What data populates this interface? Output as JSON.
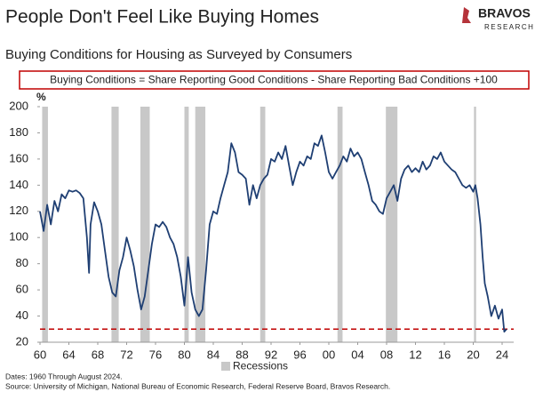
{
  "chart_data": {
    "type": "line",
    "title": "People Don't Feel Like Buying Homes",
    "subtitle": "Buying Conditions for Housing as Surveyed by Consumers",
    "annotation": "Buying Conditions = Share Reporting Good Conditions - Share Reporting Bad Conditions +100",
    "y_label": "%",
    "x": [
      1960,
      1960.5,
      1961,
      1961.5,
      1962,
      1962.5,
      1963,
      1963.5,
      1964,
      1964.5,
      1965,
      1965.5,
      1966,
      1966.5,
      1966.8,
      1967,
      1967.5,
      1968,
      1968.5,
      1969,
      1969.5,
      1970,
      1970.5,
      1971,
      1971.5,
      1972,
      1972.5,
      1973,
      1973.5,
      1974,
      1974.5,
      1975,
      1975.5,
      1976,
      1976.5,
      1977,
      1977.5,
      1978,
      1978.5,
      1979,
      1979.5,
      1980,
      1980.5,
      1981,
      1981.5,
      1982,
      1982.5,
      1983,
      1983.5,
      1984,
      1984.5,
      1985,
      1985.5,
      1986,
      1986.5,
      1987,
      1987.5,
      1988,
      1988.5,
      1989,
      1989.5,
      1990,
      1990.5,
      1991,
      1991.5,
      1992,
      1992.5,
      1993,
      1993.5,
      1994,
      1994.5,
      1995,
      1995.5,
      1996,
      1996.5,
      1997,
      1997.5,
      1998,
      1998.5,
      1999,
      1999.5,
      2000,
      2000.5,
      2001,
      2001.5,
      2002,
      2002.5,
      2003,
      2003.5,
      2004,
      2004.5,
      2005,
      2005.5,
      2006,
      2006.5,
      2007,
      2007.5,
      2008,
      2008.5,
      2009,
      2009.5,
      2010,
      2010.5,
      2011,
      2011.5,
      2012,
      2012.5,
      2013,
      2013.5,
      2014,
      2014.5,
      2015,
      2015.5,
      2016,
      2016.5,
      2017,
      2017.5,
      2018,
      2018.5,
      2019,
      2019.5,
      2020,
      2020.3,
      2020.6,
      2021,
      2021.3,
      2021.6,
      2022,
      2022.5,
      2023,
      2023.5,
      2024,
      2024.3,
      2024.6
    ],
    "series": [
      {
        "color": "#1f3f73",
        "values": [
          120,
          105,
          125,
          110,
          128,
          120,
          133,
          130,
          136,
          135,
          136,
          134,
          130,
          100,
          73,
          110,
          127,
          120,
          110,
          90,
          70,
          58,
          55,
          75,
          85,
          100,
          90,
          78,
          60,
          45,
          55,
          75,
          95,
          110,
          108,
          112,
          108,
          100,
          95,
          85,
          70,
          48,
          85,
          58,
          45,
          40,
          45,
          75,
          110,
          120,
          118,
          130,
          140,
          150,
          172,
          165,
          150,
          148,
          145,
          125,
          140,
          130,
          140,
          145,
          148,
          160,
          158,
          165,
          160,
          170,
          155,
          140,
          150,
          158,
          155,
          162,
          160,
          172,
          170,
          178,
          165,
          150,
          145,
          150,
          155,
          162,
          158,
          168,
          162,
          165,
          160,
          150,
          140,
          128,
          125,
          120,
          118,
          130,
          135,
          140,
          128,
          145,
          152,
          155,
          150,
          153,
          150,
          158,
          152,
          155,
          162,
          160,
          165,
          158,
          155,
          152,
          150,
          145,
          140,
          138,
          140,
          135,
          140,
          130,
          110,
          85,
          65,
          55,
          40,
          48,
          38,
          45,
          28,
          30
        ]
      }
    ],
    "recessions": {
      "name": "Recessions",
      "color": "#c8c8c8",
      "spans": [
        [
          1960.3,
          1961.1
        ],
        [
          1969.9,
          1970.9
        ],
        [
          1973.9,
          1975.2
        ],
        [
          1980.0,
          1980.6
        ],
        [
          1981.5,
          1982.9
        ],
        [
          1990.5,
          1991.2
        ],
        [
          2001.2,
          2001.9
        ],
        [
          2007.9,
          2009.5
        ],
        [
          2020.1,
          2020.4
        ]
      ]
    },
    "reference_line": {
      "value": 30,
      "color": "#c00000"
    },
    "xlim": [
      1960,
      2025.6
    ],
    "xticks": [
      {
        "value": 1960,
        "label": "60"
      },
      {
        "value": 1964,
        "label": "64"
      },
      {
        "value": 1968,
        "label": "68"
      },
      {
        "value": 1972,
        "label": "72"
      },
      {
        "value": 1976,
        "label": "76"
      },
      {
        "value": 1980,
        "label": "80"
      },
      {
        "value": 1984,
        "label": "84"
      },
      {
        "value": 1988,
        "label": "88"
      },
      {
        "value": 1992,
        "label": "92"
      },
      {
        "value": 1996,
        "label": "96"
      },
      {
        "value": 2000,
        "label": "00"
      },
      {
        "value": 2004,
        "label": "04"
      },
      {
        "value": 2008,
        "label": "08"
      },
      {
        "value": 2012,
        "label": "12"
      },
      {
        "value": 2016,
        "label": "16"
      },
      {
        "value": 2020,
        "label": "20"
      },
      {
        "value": 2024,
        "label": "24"
      }
    ],
    "ylim": [
      20,
      200
    ],
    "yticks": [
      20,
      40,
      60,
      80,
      100,
      120,
      140,
      160,
      180,
      200
    ],
    "footnotes": [
      "Dates: 1960 Through August 2024.",
      "Source: University of Michigan, National Bureau of Economic Research, Federal Reserve Board, Bravos Research."
    ]
  },
  "logo": {
    "name": "BRAVOS",
    "tagline": "RESEARCH"
  }
}
